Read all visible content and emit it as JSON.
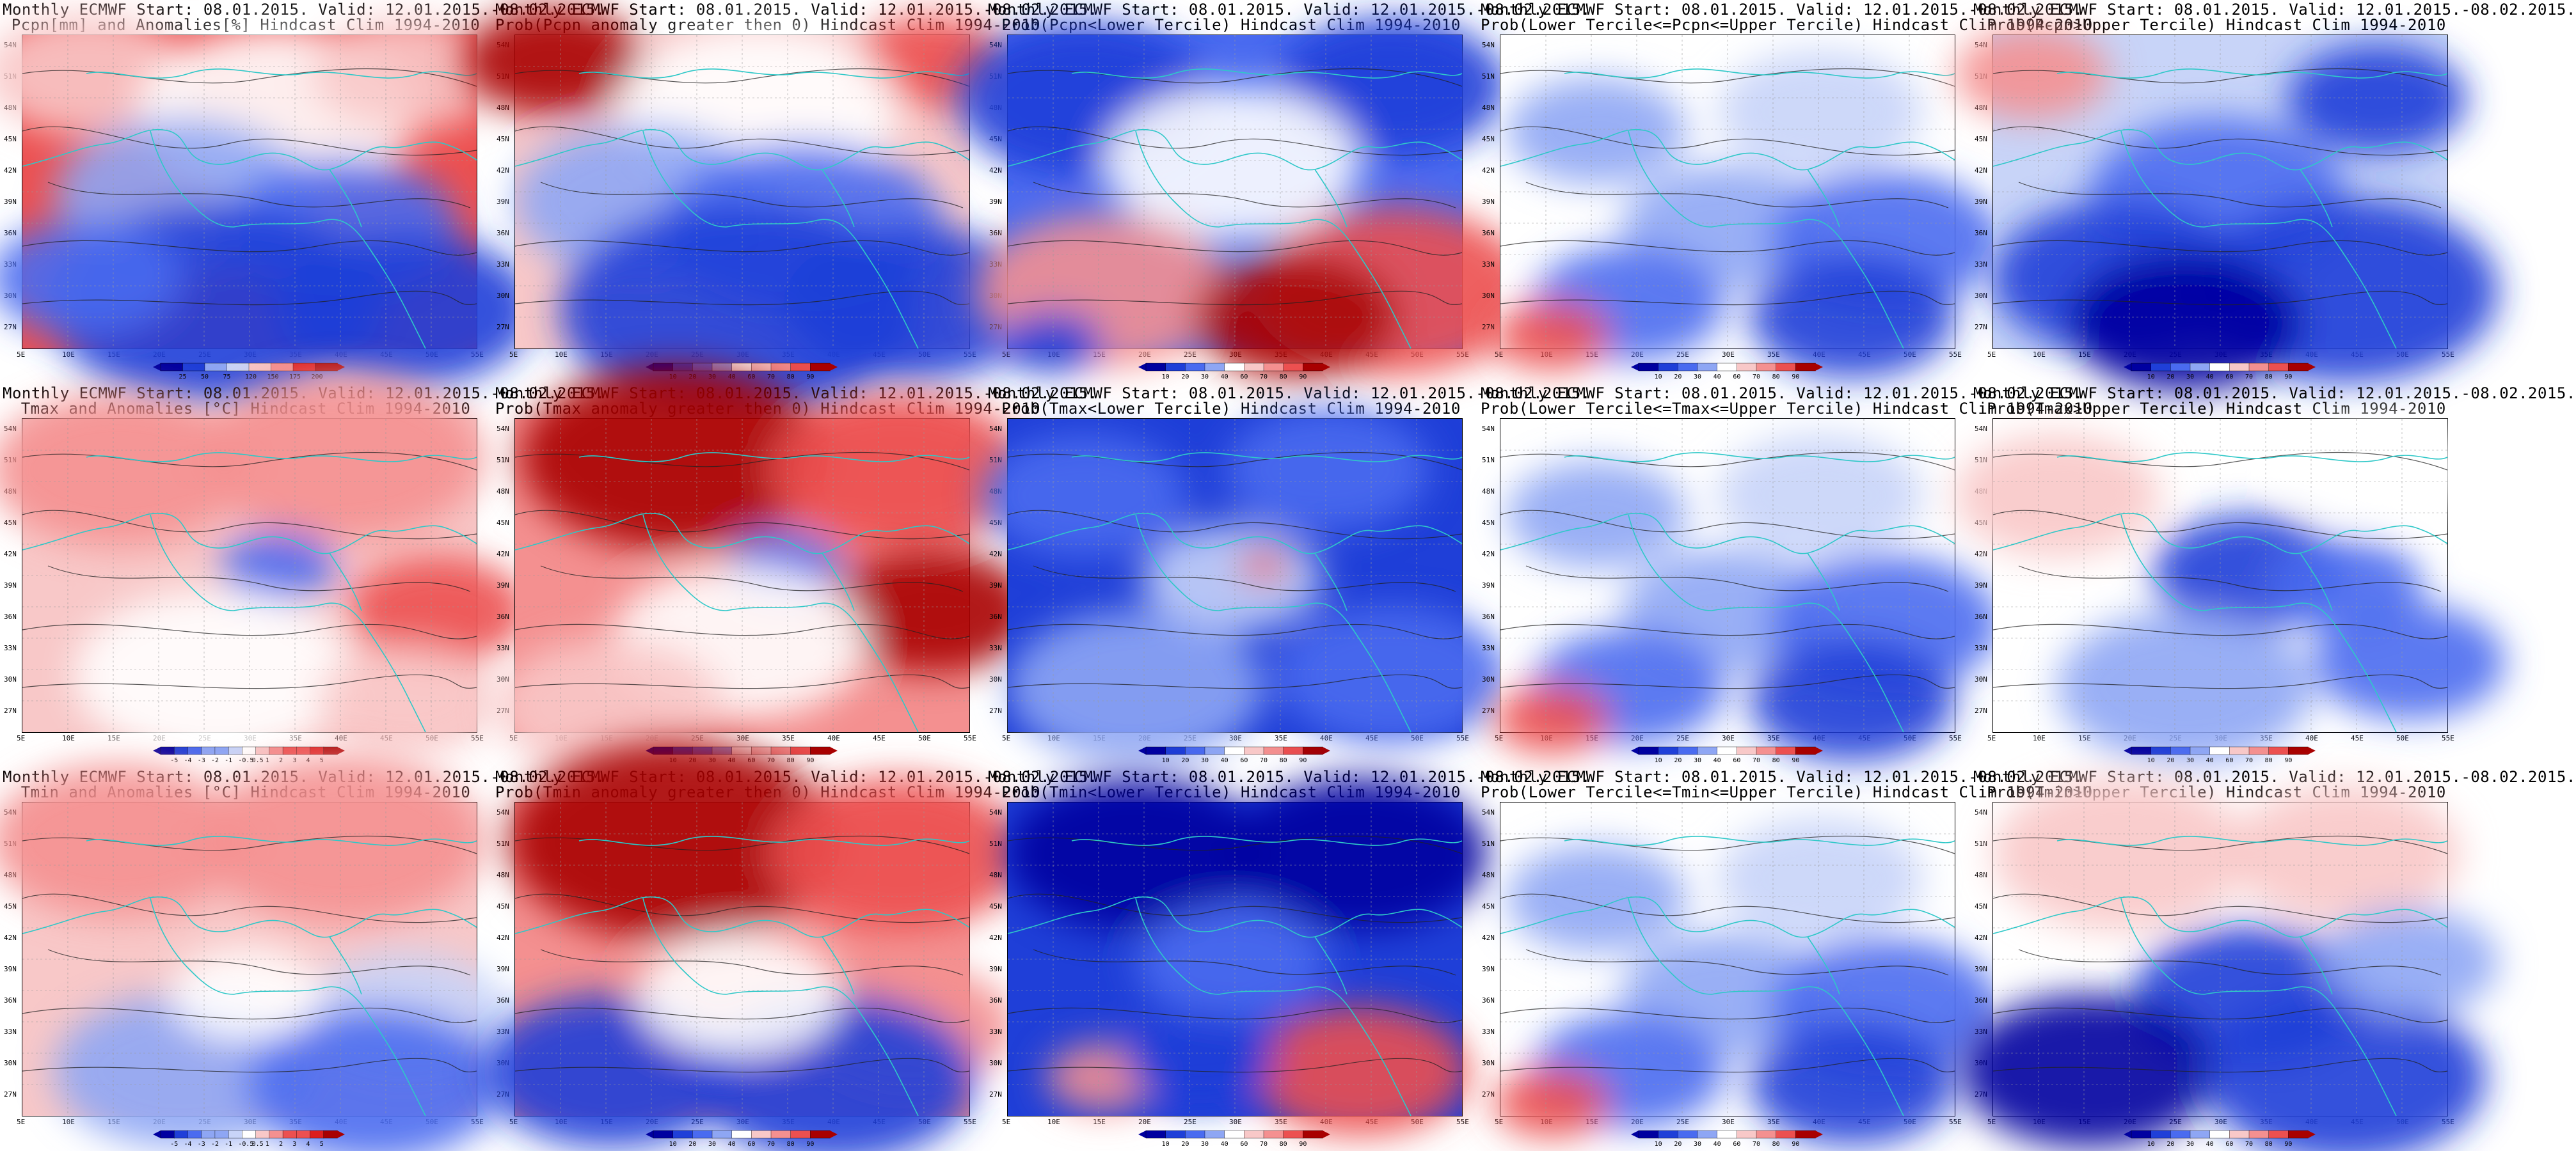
{
  "latitude_labels": [
    "54N",
    "51N",
    "48N",
    "45N",
    "42N",
    "39N",
    "36N",
    "33N",
    "30N",
    "27N"
  ],
  "longitude_labels": [
    "5E",
    "10E",
    "15E",
    "20E",
    "25E",
    "30E",
    "35E",
    "40E",
    "45E",
    "50E",
    "55E"
  ],
  "colors": {
    "coast": "#2fc8c8",
    "contour": "#222222",
    "anom_scale": [
      "#0000a0",
      "#1f3fd8",
      "#4a6bf0",
      "#8ea6f4",
      "#c8d4f8",
      "#ffffff",
      "#f8c8c8",
      "#f49090",
      "#ec5050",
      "#dc1e1e",
      "#a80000"
    ],
    "prob_scale": [
      "#0000a0",
      "#1f3fd8",
      "#4a6bf0",
      "#8ea6f4",
      "#c8d4f8",
      "#ffffff",
      "#f8c8c8",
      "#f49090",
      "#ec5050",
      "#a80000"
    ]
  },
  "colorbars": {
    "pcpn_anom": [
      "25",
      "50",
      "75",
      "120",
      "150",
      "175",
      "200"
    ],
    "prob": [
      "10",
      "20",
      "30",
      "40",
      "60",
      "70",
      "80",
      "90"
    ],
    "temp_anom": [
      "-5",
      "-4",
      "-3",
      "-2",
      "-1",
      "-0.5",
      "0.5",
      "1",
      "2",
      "3",
      "4",
      "5"
    ]
  },
  "panels": [
    {
      "title1": "Monthly ECMWF Start: 08.01.2015. Valid: 12.01.2015.-08.02.2015.",
      "title2": "Pcpn[mm] and Anomalies[%] Hindcast Clim 1994-2010",
      "bar": "pcpn_anom",
      "scheme": "pcpn"
    },
    {
      "title1": "Monthly ECMWF Start: 08.01.2015. Valid: 12.01.2015.-08.02.2015.",
      "title2": "Prob(Pcpn anomaly greater then 0) Hindcast Clim 1994-2010",
      "bar": "prob",
      "scheme": "pcpn_prob"
    },
    {
      "title1": "Monthly ECMWF Start: 08.01.2015. Valid: 12.01.2015.-08.02.2015.",
      "title2": "Prob(Pcpn<Lower Tercile) Hindcast Clim 1994-2010",
      "bar": "prob",
      "scheme": "pcpn_low"
    },
    {
      "title1": "Monthly ECMWF Start: 08.01.2015. Valid: 12.01.2015.-08.02.2015.",
      "title2": "Prob(Lower Tercile<=Pcpn<=Upper Tercile) Hindcast Clim 1994-2010",
      "bar": "prob",
      "scheme": "mid"
    },
    {
      "title1": "Monthly ECMWF Start: 08.01.2015. Valid: 12.01.2015.-08.02.2015.",
      "title2": "Prob(Pcpn>Upper Tercile) Hindcast Clim 1994-2010",
      "bar": "prob",
      "scheme": "pcpn_up"
    },
    {
      "title1": "Monthly ECMWF Start: 08.01.2015. Valid: 12.01.2015.-08.02.2015.",
      "title2": "Tmax and Anomalies [°C] Hindcast Clim 1994-2010",
      "bar": "temp_anom",
      "scheme": "tmax"
    },
    {
      "title1": "Monthly ECMWF Start: 08.01.2015. Valid: 12.01.2015.-08.02.2015.",
      "title2": "Prob(Tmax anomaly greater then 0) Hindcast Clim 1994-2010",
      "bar": "prob",
      "scheme": "tmax_prob"
    },
    {
      "title1": "Monthly ECMWF Start: 08.01.2015. Valid: 12.01.2015.-08.02.2015.",
      "title2": "Prob(Tmax<Lower Tercile) Hindcast Clim 1994-2010",
      "bar": "prob",
      "scheme": "tmax_low"
    },
    {
      "title1": "Monthly ECMWF Start: 08.01.2015. Valid: 12.01.2015.-08.02.2015.",
      "title2": "Prob(Lower Tercile<=Tmax<=Upper Tercile) Hindcast Clim 1994-2010",
      "bar": "prob",
      "scheme": "mid"
    },
    {
      "title1": "Monthly ECMWF Start: 08.01.2015. Valid: 12.01.2015.-08.02.2015.",
      "title2": "Prob(Tmax>Upper Tercile) Hindcast Clim 1994-2010",
      "bar": "prob",
      "scheme": "tmax_up"
    },
    {
      "title1": "Monthly ECMWF Start: 08.01.2015. Valid: 12.01.2015.-08.02.2015.",
      "title2": "Tmin and Anomalies [°C] Hindcast Clim 1994-2010",
      "bar": "temp_anom",
      "scheme": "tmin"
    },
    {
      "title1": "Monthly ECMWF Start: 08.01.2015. Valid: 12.01.2015.-08.02.2015.",
      "title2": "Prob(Tmin anomaly greater then 0) Hindcast Clim 1994-2010",
      "bar": "prob",
      "scheme": "tmin_prob"
    },
    {
      "title1": "Monthly ECMWF Start: 08.01.2015. Valid: 12.01.2015.-08.02.2015.",
      "title2": "Prob(Tmin<Lower Tercile) Hindcast Clim 1994-2010",
      "bar": "prob",
      "scheme": "tmin_low"
    },
    {
      "title1": "Monthly ECMWF Start: 08.01.2015. Valid: 12.01.2015.-08.02.2015.",
      "title2": "Prob(Lower Tercile<=Tmin<=Upper Tercile) Hindcast Clim 1994-2010",
      "bar": "prob",
      "scheme": "mid"
    },
    {
      "title1": "Monthly ECMWF Start: 08.01.2015. Valid: 12.01.2015.-08.02.2015.",
      "title2": "Prob(Tmin>Upper Tercile) Hindcast Clim 1994-2010",
      "bar": "prob",
      "scheme": "tmin_up"
    }
  ]
}
